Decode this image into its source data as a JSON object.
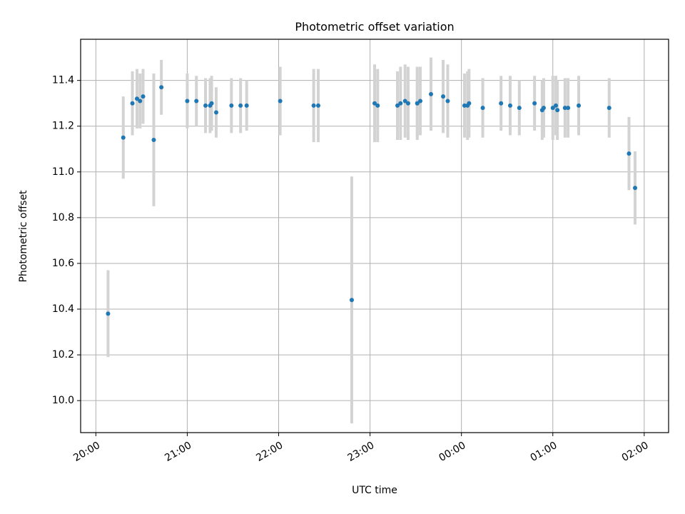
{
  "chart_data": {
    "type": "scatter",
    "title": "Photometric offset variation",
    "xlabel": "UTC time",
    "ylabel": "Photometric offset",
    "grid": true,
    "legend": "none",
    "x_tick_labels": [
      "20:00",
      "21:00",
      "22:00",
      "23:00",
      "00:00",
      "01:00",
      "02:00"
    ],
    "y_tick_labels": [
      "10.0",
      "10.2",
      "10.4",
      "10.6",
      "10.8",
      "11.0",
      "11.2",
      "11.4"
    ],
    "xlim": [
      "19:50",
      "02:16"
    ],
    "ylim": [
      9.86,
      11.58
    ],
    "marker_color": "#1f77b4",
    "errorbar_color": "#d3d3d3",
    "series": [
      {
        "x": [
          "20:08",
          "20:18",
          "20:24",
          "20:27",
          "20:29",
          "20:31",
          "20:38",
          "20:43",
          "21:00",
          "21:06",
          "21:12",
          "21:15",
          "21:16",
          "21:19",
          "21:29",
          "21:35",
          "21:39",
          "22:01",
          "22:23",
          "22:26",
          "22:48",
          "23:03",
          "23:05",
          "23:18",
          "23:20",
          "23:23",
          "23:25",
          "23:31",
          "23:31",
          "23:33",
          "23:40",
          "23:48",
          "23:51",
          "00:02",
          "00:04",
          "00:05",
          "00:14",
          "00:26",
          "00:32",
          "00:38",
          "00:48",
          "00:53",
          "00:54",
          "01:00",
          "01:02",
          "01:03",
          "01:08",
          "01:10",
          "01:17",
          "01:37",
          "01:50",
          "01:54"
        ],
        "y": [
          10.38,
          11.15,
          11.3,
          11.32,
          11.31,
          11.33,
          11.14,
          11.37,
          11.31,
          11.31,
          11.29,
          11.29,
          11.3,
          11.26,
          11.29,
          11.29,
          11.29,
          11.31,
          11.29,
          11.29,
          10.44,
          11.3,
          11.29,
          11.29,
          11.3,
          11.31,
          11.3,
          11.3,
          11.3,
          11.31,
          11.34,
          11.33,
          11.31,
          11.29,
          11.29,
          11.3,
          11.28,
          11.3,
          11.29,
          11.28,
          11.3,
          11.27,
          11.28,
          11.28,
          11.29,
          11.27,
          11.28,
          11.28,
          11.29,
          11.28,
          11.08,
          10.93
        ],
        "err": [
          0.19,
          0.18,
          0.14,
          0.13,
          0.12,
          0.12,
          0.29,
          0.12,
          0.12,
          0.11,
          0.12,
          0.12,
          0.12,
          0.11,
          0.12,
          0.12,
          0.11,
          0.15,
          0.16,
          0.16,
          0.54,
          0.17,
          0.16,
          0.15,
          0.16,
          0.16,
          0.16,
          0.16,
          0.15,
          0.15,
          0.16,
          0.16,
          0.16,
          0.14,
          0.15,
          0.15,
          0.13,
          0.12,
          0.13,
          0.12,
          0.12,
          0.13,
          0.13,
          0.14,
          0.13,
          0.13,
          0.13,
          0.13,
          0.13,
          0.13,
          0.16,
          0.16
        ]
      }
    ]
  }
}
